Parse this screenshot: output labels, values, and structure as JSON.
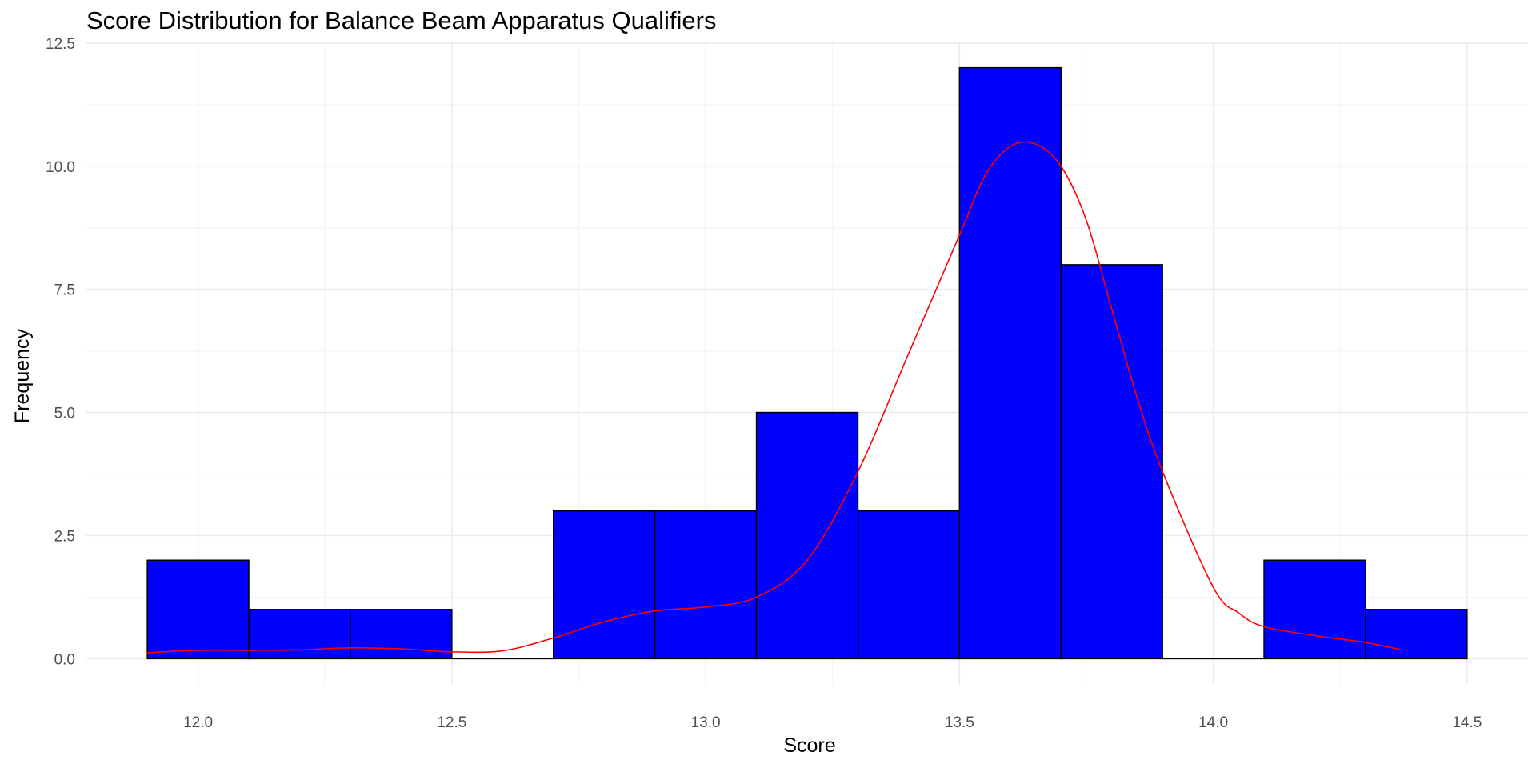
{
  "chart_data": {
    "type": "bar",
    "title": "Score Distribution for Balance Beam Apparatus Qualifiers",
    "xlabel": "Score",
    "ylabel": "Frequency",
    "xlim": [
      11.78,
      14.62
    ],
    "ylim": [
      -0.53,
      12.53
    ],
    "x_ticks": [
      12.0,
      12.5,
      13.0,
      13.5,
      14.0,
      14.5
    ],
    "x_tick_labels": [
      "12.0",
      "12.5",
      "13.0",
      "13.5",
      "14.0",
      "14.5"
    ],
    "y_ticks": [
      0,
      2.5,
      5,
      7.5,
      10,
      12.5
    ],
    "y_tick_labels": [
      "0.0",
      "2.5",
      "5.0",
      "7.5",
      "10.0",
      "12.5"
    ],
    "bin_width": 0.2,
    "bins": [
      {
        "start": 11.9,
        "end": 12.1,
        "value": 2
      },
      {
        "start": 12.1,
        "end": 12.3,
        "value": 1
      },
      {
        "start": 12.3,
        "end": 12.5,
        "value": 1
      },
      {
        "start": 12.5,
        "end": 12.7,
        "value": 0
      },
      {
        "start": 12.7,
        "end": 12.9,
        "value": 3
      },
      {
        "start": 12.9,
        "end": 13.1,
        "value": 3
      },
      {
        "start": 13.1,
        "end": 13.3,
        "value": 5
      },
      {
        "start": 13.3,
        "end": 13.5,
        "value": 3
      },
      {
        "start": 13.5,
        "end": 13.7,
        "value": 12
      },
      {
        "start": 13.7,
        "end": 13.9,
        "value": 8
      },
      {
        "start": 13.9,
        "end": 14.1,
        "value": 0
      },
      {
        "start": 14.1,
        "end": 14.3,
        "value": 2
      },
      {
        "start": 14.3,
        "end": 14.5,
        "value": 1
      }
    ],
    "density_curve": {
      "x": [
        11.9,
        12.0,
        12.1,
        12.2,
        12.3,
        12.4,
        12.5,
        12.6,
        12.7,
        12.8,
        12.9,
        13.0,
        13.1,
        13.2,
        13.3,
        13.4,
        13.5,
        13.55,
        13.6,
        13.65,
        13.7,
        13.75,
        13.8,
        13.85,
        13.9,
        14.0,
        14.05,
        14.1,
        14.2,
        14.3,
        14.37
      ],
      "y": [
        0.12,
        0.17,
        0.17,
        0.18,
        0.22,
        0.2,
        0.14,
        0.16,
        0.42,
        0.75,
        0.97,
        1.05,
        1.25,
        2.0,
        3.8,
        6.2,
        8.6,
        9.8,
        10.4,
        10.45,
        10.0,
        8.9,
        7.1,
        5.3,
        3.8,
        1.45,
        0.93,
        0.65,
        0.47,
        0.33,
        0.18
      ]
    },
    "colors": {
      "bar_fill": "#0000ff",
      "bar_stroke": "#000000",
      "curve": "#ff0000",
      "grid_major": "#ebebeb",
      "grid_minor": "#f5f5f5"
    },
    "grid": true,
    "legend": "none"
  }
}
